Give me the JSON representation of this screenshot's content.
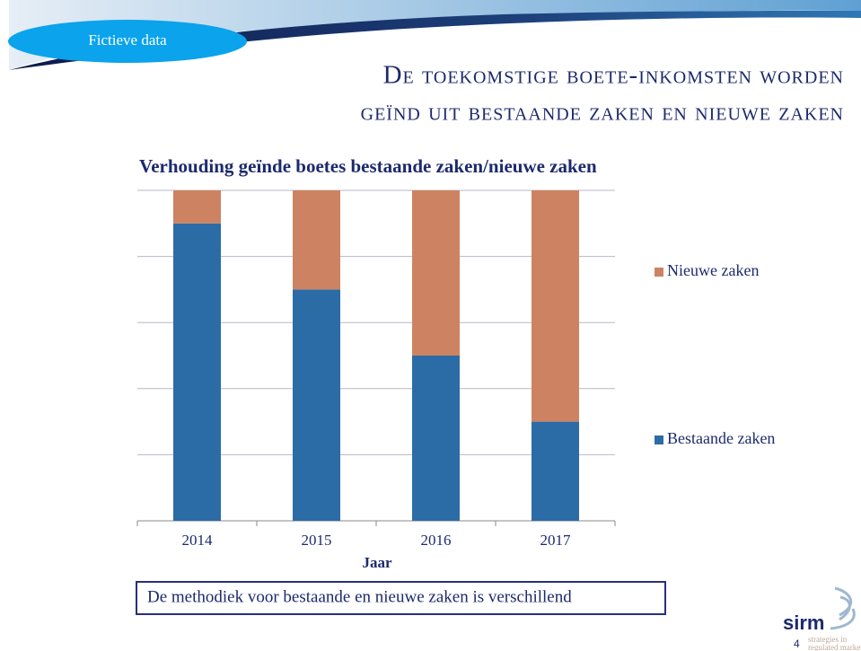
{
  "slide": {
    "badge": "Fictieve data",
    "title_lines": [
      "De toekomstige boete-inkomsten worden",
      "geïnd uit bestaande zaken en nieuwe zaken"
    ],
    "note": "De methodiek voor bestaande en nieuwe zaken is verschillend",
    "logo": "sirm",
    "tagline_lines": [
      "strategies in",
      "regulated markets"
    ],
    "page_number": "4"
  },
  "chart_data": {
    "type": "stacked_bar",
    "title": "Verhouding geïnde boetes bestaande zaken/nieuwe zaken",
    "x_label": "Jaar",
    "categories": [
      "2014",
      "2015",
      "2016",
      "2017"
    ],
    "series": [
      {
        "name": "Bestaande zaken",
        "color": "#2c6ca6",
        "values": [
          90,
          70,
          50,
          30
        ]
      },
      {
        "name": "Nieuwe zaken",
        "color": "#cd8361",
        "values": [
          10,
          30,
          50,
          70
        ]
      }
    ],
    "ylim": [
      0,
      100
    ],
    "yticks": [
      0,
      20,
      40,
      60,
      80,
      100
    ],
    "grid": true,
    "legend": "right"
  }
}
